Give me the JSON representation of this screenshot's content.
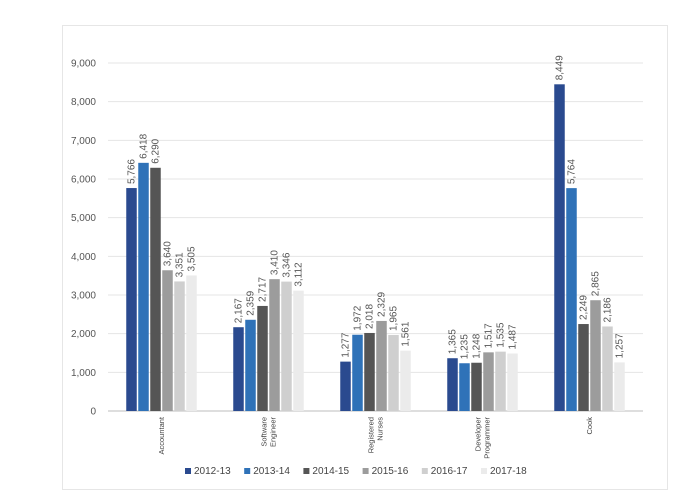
{
  "chart_data": {
    "type": "bar",
    "title": "",
    "xlabel": "",
    "ylabel": "",
    "ylim": [
      0,
      9000
    ],
    "yticks": [
      "0",
      "1,000",
      "2,000",
      "3,000",
      "4,000",
      "5,000",
      "6,000",
      "7,000",
      "8,000",
      "9,000"
    ],
    "grid": true,
    "legend_position": "bottom",
    "categories": [
      [
        "Accountant"
      ],
      [
        "Software",
        "Engineer"
      ],
      [
        "Registered",
        "Nurses"
      ],
      [
        "Developer",
        "Programmer"
      ],
      [
        "Cook"
      ]
    ],
    "series": [
      {
        "name": "2012-13",
        "color": "#2a4a8f",
        "values": [
          5766,
          2167,
          1277,
          1365,
          8449
        ],
        "labels": [
          "5,766",
          "2,167",
          "1,277",
          "1,365",
          "8,449"
        ]
      },
      {
        "name": "2013-14",
        "color": "#2f72b8",
        "values": [
          6418,
          2359,
          1972,
          1235,
          5764
        ],
        "labels": [
          "6,418",
          "2,359",
          "1,972",
          "1,235",
          "5,764"
        ]
      },
      {
        "name": "2014-15",
        "color": "#555555",
        "values": [
          6290,
          2717,
          2018,
          1248,
          2249
        ],
        "labels": [
          "6,290",
          "2,717",
          "2,018",
          "1,248",
          "2,249"
        ]
      },
      {
        "name": "2015-16",
        "color": "#9c9c9c",
        "values": [
          3640,
          3410,
          2329,
          1517,
          2865
        ],
        "labels": [
          "3,640",
          "3,410",
          "2,329",
          "1,517",
          "2,865"
        ]
      },
      {
        "name": "2016-17",
        "color": "#cfcfcf",
        "values": [
          3351,
          3346,
          1965,
          1535,
          2186
        ],
        "labels": [
          "3,351",
          "3,346",
          "1,965",
          "1,535",
          "2,186"
        ]
      },
      {
        "name": "2017-18",
        "color": "#ebebeb",
        "values": [
          3505,
          3112,
          1561,
          1487,
          1257
        ],
        "labels": [
          "3,505",
          "3,112",
          "1,561",
          "1,487",
          "1,257"
        ]
      }
    ]
  }
}
